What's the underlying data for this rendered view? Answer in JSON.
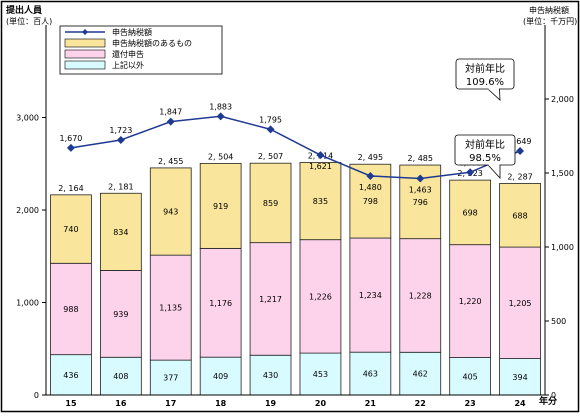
{
  "chart_data": {
    "type": "bar",
    "stacked": true,
    "left_axis_label_line1": "提出人員",
    "left_axis_label_line2": "(単位：百人)",
    "right_axis_label_line1": "申告納税額",
    "right_axis_label_line2": "(単位：千万円)",
    "x_unit_label": "年分",
    "categories": [
      "15",
      "16",
      "17",
      "18",
      "19",
      "20",
      "21",
      "22",
      "23",
      "24"
    ],
    "ylim_left": [
      0,
      4000
    ],
    "yticks_left": [
      0,
      1000,
      2000,
      3000
    ],
    "ytick_labels_left": [
      "0",
      "1,000",
      "2,000",
      "3,000"
    ],
    "ylim_right": [
      0,
      2500
    ],
    "yticks_right": [
      0,
      500,
      1000,
      1500,
      2000
    ],
    "ytick_labels_right": [
      "0",
      "500",
      "1,000",
      "1,500",
      "2,000"
    ],
    "grid": false,
    "legend_position": "top-left",
    "series": [
      {
        "name": "上記以外",
        "color": "#d8fbff",
        "values": [
          436,
          408,
          377,
          409,
          430,
          453,
          463,
          462,
          405,
          394
        ],
        "labels": [
          "436",
          "408",
          "377",
          "409",
          "430",
          "453",
          "463",
          "462",
          "405",
          "394"
        ]
      },
      {
        "name": "還付申告",
        "color": "#fdd3ec",
        "values": [
          988,
          939,
          1135,
          1176,
          1217,
          1226,
          1234,
          1228,
          1220,
          1205
        ],
        "labels": [
          "988",
          "939",
          "1,135",
          "1,176",
          "1,217",
          "1,226",
          "1,234",
          "1,228",
          "1,220",
          "1,205"
        ]
      },
      {
        "name": "申告納税額のあるもの",
        "color": "#f9e59b",
        "values": [
          740,
          834,
          943,
          919,
          859,
          835,
          798,
          796,
          698,
          688
        ],
        "labels": [
          "740",
          "834",
          "943",
          "919",
          "859",
          "835",
          "798",
          "796",
          "698",
          "688"
        ]
      }
    ],
    "totals": {
      "values": [
        2164,
        2181,
        2455,
        2504,
        2507,
        2514,
        2495,
        2485,
        2323,
        2287
      ],
      "labels": [
        "2, 164",
        "2, 181",
        "2, 455",
        "2, 504",
        "2, 507",
        "2, 514",
        "2, 495",
        "2, 485",
        "2, 323",
        "2, 287"
      ]
    },
    "line_series": {
      "name": "申告納税額",
      "axis": "right",
      "color": "#1f3a93",
      "values": [
        1670,
        1723,
        1847,
        1883,
        1795,
        1621,
        1480,
        1463,
        1505,
        1649
      ],
      "labels": [
        "1,670",
        "1,723",
        "1,847",
        "1,883",
        "1,795",
        "1,621",
        "1,480",
        "1,463",
        "1,505",
        "1,649"
      ]
    },
    "annotations": [
      {
        "line1": "対前年比",
        "line2": "109.6%",
        "target": "line"
      },
      {
        "line1": "対前年比",
        "line2": "98.5%",
        "target": "bar"
      }
    ]
  }
}
